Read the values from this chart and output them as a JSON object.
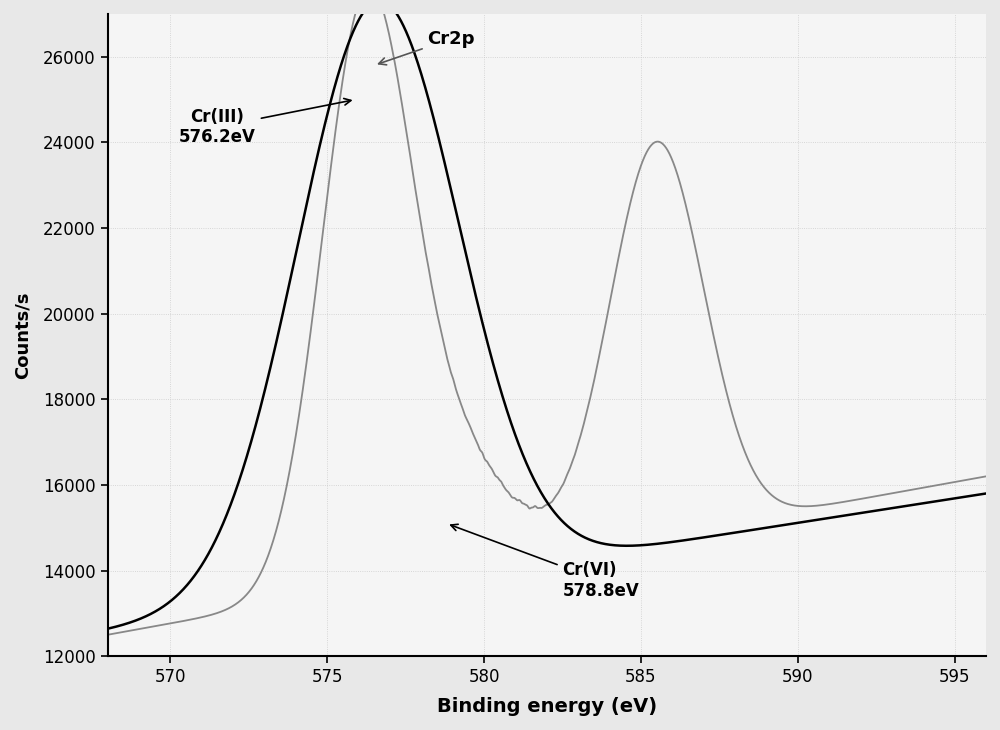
{
  "xlabel": "Binding energy (eV)",
  "ylabel": "Counts/s",
  "xlim": [
    568,
    596
  ],
  "ylim": [
    12000,
    27000
  ],
  "xticks": [
    570,
    575,
    580,
    585,
    590,
    595
  ],
  "yticks": [
    12000,
    14000,
    16000,
    18000,
    20000,
    22000,
    24000,
    26000
  ],
  "fig_bg_color": "#e8e8e8",
  "plot_bg": "#f5f5f5",
  "black_line_color": "#000000",
  "gray_line_color": "#888888",
  "grid_color": "#cccccc",
  "cr2p_text": "Cr2p",
  "cr3_text": "Cr(III)\n576.2eV",
  "cr6_text": "Cr(VI)\n578.8eV"
}
